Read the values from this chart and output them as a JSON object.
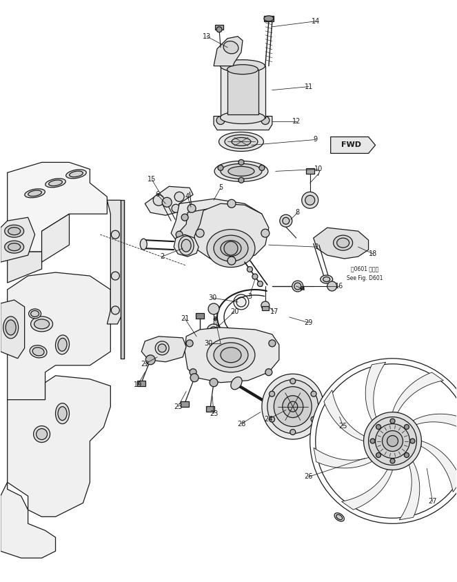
{
  "background_color": "#ffffff",
  "line_color": "#1a1a1a",
  "fig_width": 6.63,
  "fig_height": 8.44,
  "dpi": 100,
  "note_text1": "図0601 図参照",
  "note_text2": "See Fig. D601",
  "fwd_text": "FWD"
}
